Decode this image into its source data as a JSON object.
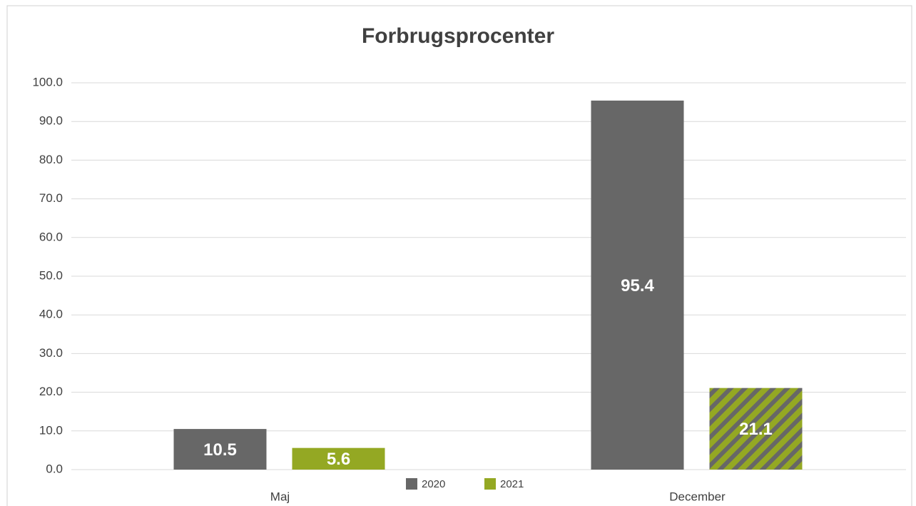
{
  "chart_data": {
    "type": "bar",
    "title": "Forbrugsprocenter",
    "categories": [
      "Maj",
      "December"
    ],
    "series": [
      {
        "name": "2020",
        "color": "#676767",
        "values": [
          10.5,
          95.4
        ]
      },
      {
        "name": "2021",
        "color": "#94a823",
        "values": [
          5.6,
          21.1
        ],
        "hatched": [
          false,
          true
        ]
      }
    ],
    "ylim": [
      0,
      100
    ],
    "yticks": [
      {
        "value": 0,
        "label": "0.0"
      },
      {
        "value": 10,
        "label": "10.0"
      },
      {
        "value": 20,
        "label": "20.0"
      },
      {
        "value": 30,
        "label": "30.0"
      },
      {
        "value": 40,
        "label": "40.0"
      },
      {
        "value": 50,
        "label": "50.0"
      },
      {
        "value": 60,
        "label": "60.0"
      },
      {
        "value": 70,
        "label": "70.0"
      },
      {
        "value": 80,
        "label": "80.0"
      },
      {
        "value": 90,
        "label": "90.0"
      },
      {
        "value": 100,
        "label": "100.0"
      }
    ],
    "grid": true,
    "legend": "bottom"
  }
}
